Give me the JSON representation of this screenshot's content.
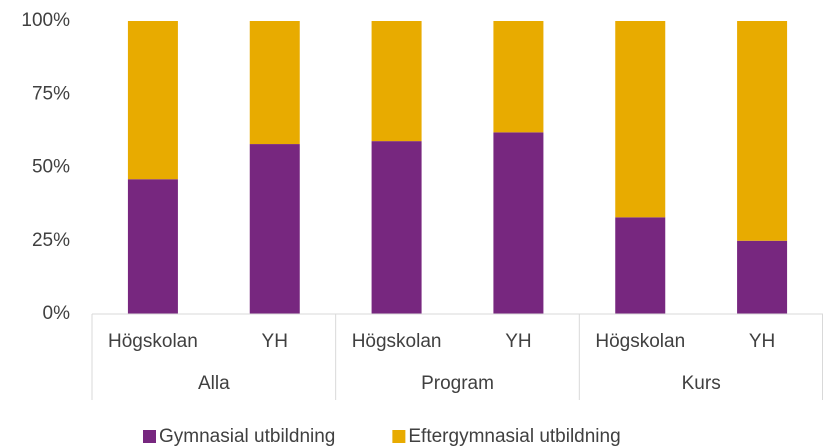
{
  "chart_data": {
    "type": "stacked_bar",
    "categories": [
      "Högskolan",
      "YH",
      "Högskolan",
      "YH",
      "Högskolan",
      "YH"
    ],
    "groups": [
      "Alla",
      "Program",
      "Kurs"
    ],
    "series": [
      {
        "name": "Gymnasial utbildning",
        "color": "#77277f",
        "values": [
          46,
          58,
          59,
          62,
          33,
          25
        ]
      },
      {
        "name": "Eftergymnasial utbildning",
        "color": "#e8ab00",
        "values": [
          54,
          42,
          41,
          38,
          67,
          75
        ]
      }
    ],
    "ylim": [
      0,
      100
    ],
    "yticks": [
      {
        "value": 0,
        "label": "0%"
      },
      {
        "value": 25,
        "label": "25%"
      },
      {
        "value": 50,
        "label": "50%"
      },
      {
        "value": 75,
        "label": "75%"
      },
      {
        "value": 100,
        "label": "100%"
      }
    ],
    "legend": "bottom"
  }
}
